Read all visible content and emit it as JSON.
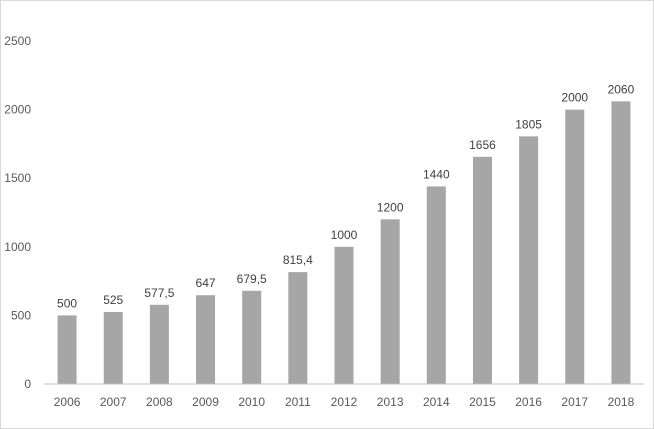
{
  "chart_data": {
    "type": "bar",
    "title": "",
    "xlabel": "",
    "ylabel": "",
    "categories": [
      "2006",
      "2007",
      "2008",
      "2009",
      "2010",
      "2011",
      "2012",
      "2013",
      "2014",
      "2015",
      "2016",
      "2017",
      "2018"
    ],
    "values": [
      500,
      525,
      577.5,
      647,
      679.5,
      815.4,
      1000,
      1200,
      1440,
      1656,
      1805,
      2000,
      2060
    ],
    "data_labels": [
      "500",
      "525",
      "577,5",
      "647",
      "679,5",
      "815,4",
      "1000",
      "1200",
      "1440",
      "1656",
      "1805",
      "2000",
      "2060"
    ],
    "ylim": [
      0,
      2500
    ],
    "yticks": [
      0,
      500,
      1000,
      1500,
      2000,
      2500
    ],
    "grid": false,
    "legend": "none",
    "bar_color": "#a6a6a6",
    "axis_color": "#bfbfbf"
  }
}
